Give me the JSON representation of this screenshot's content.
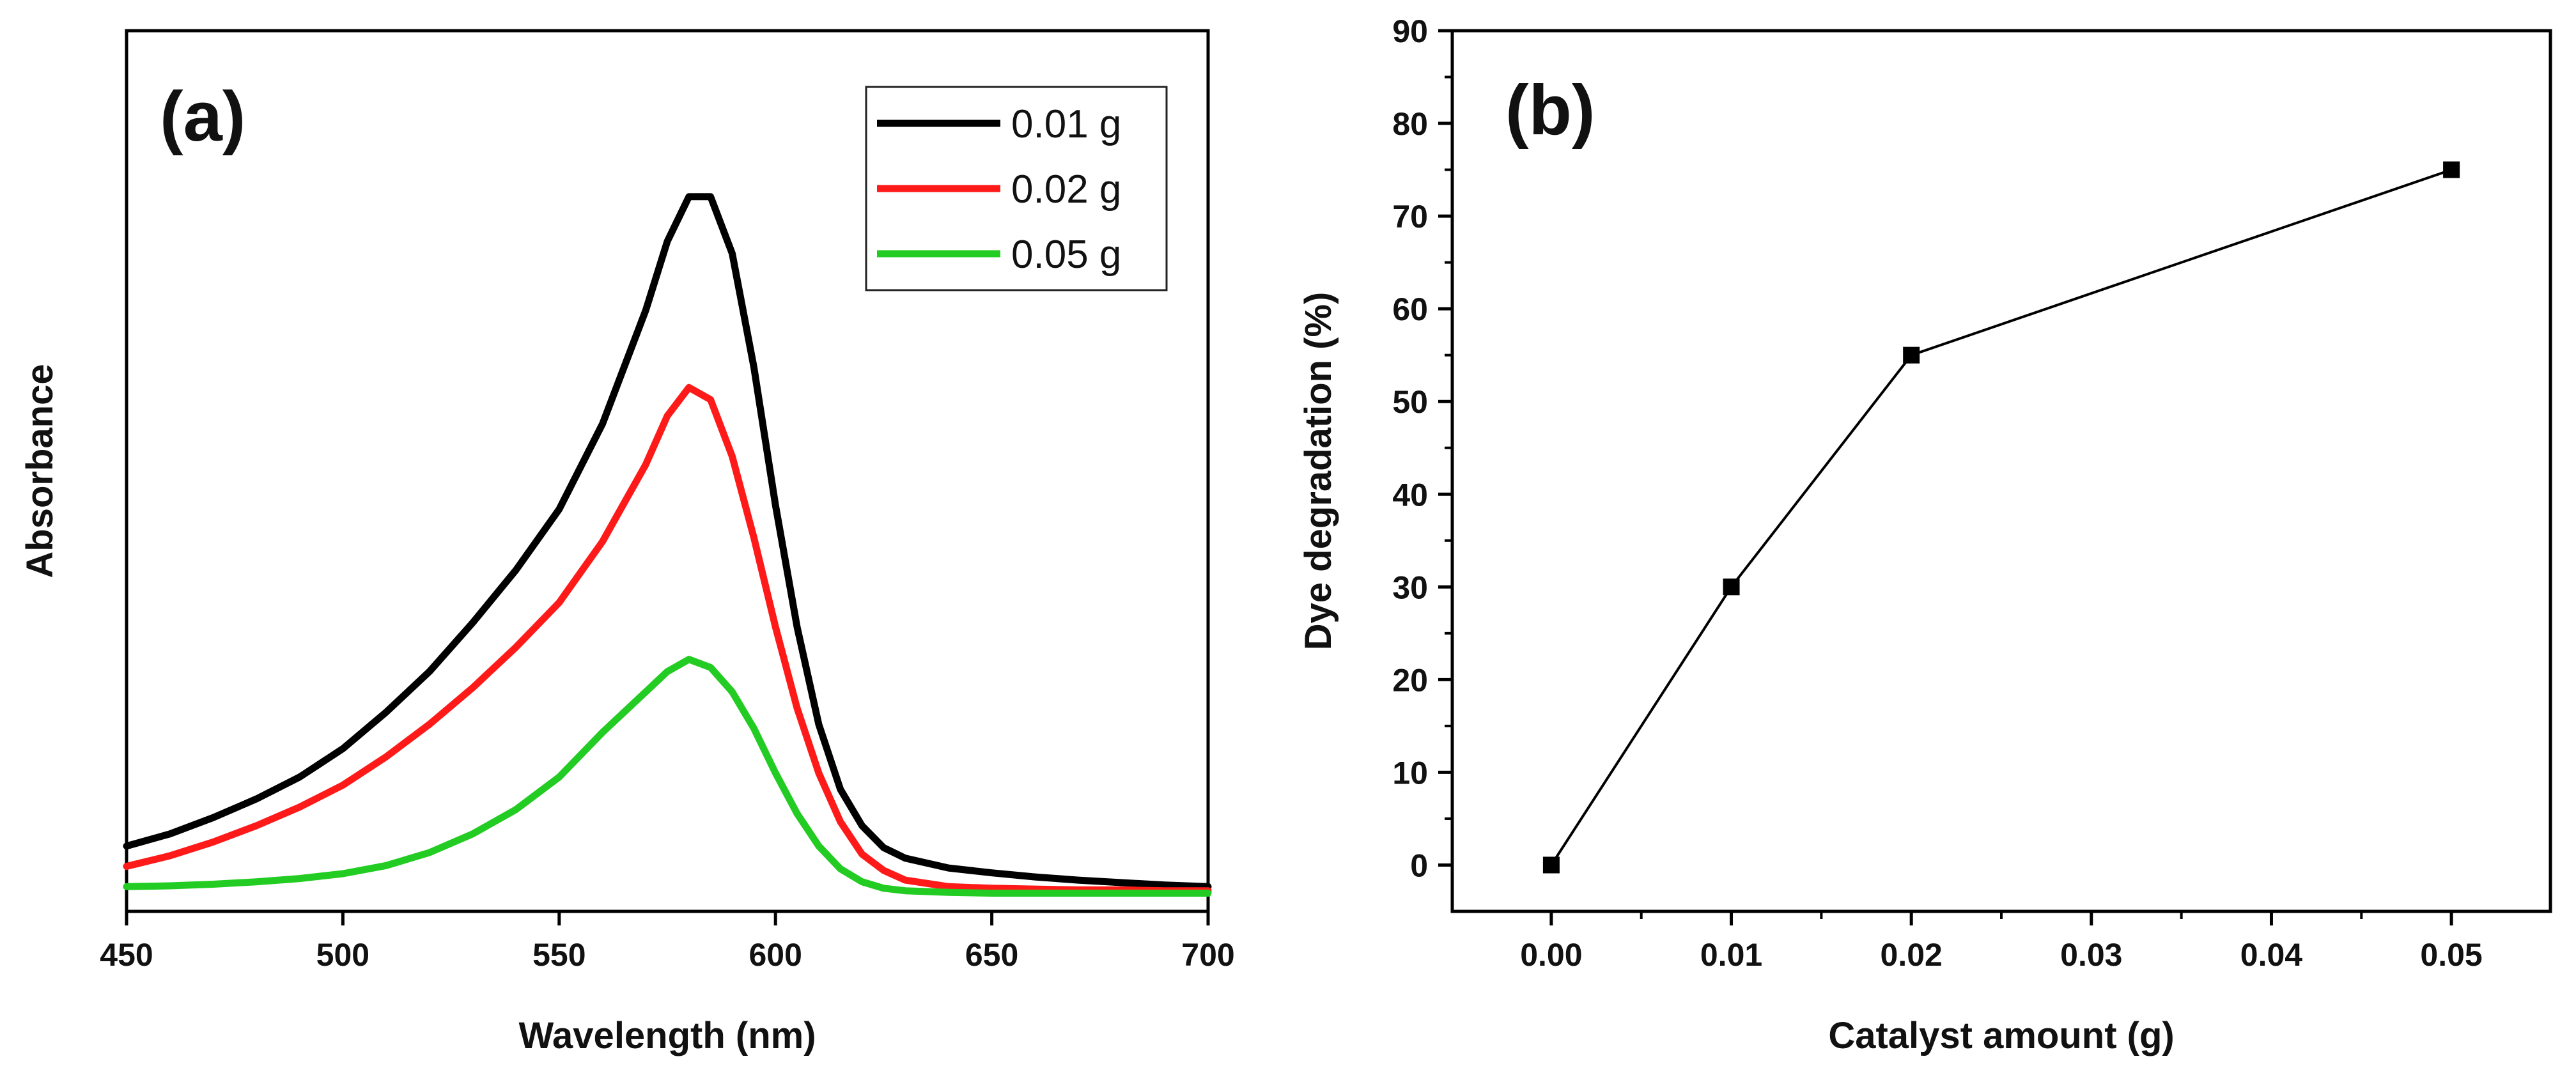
{
  "chart_data": [
    {
      "panel_label": "(a)",
      "type": "line",
      "xlabel": "Wavelength (nm)",
      "ylabel": "Absorbance",
      "xlim": [
        450,
        700
      ],
      "ylim": [
        0,
        1.0
      ],
      "xticks": [
        "450",
        "500",
        "550",
        "600",
        "650",
        "700"
      ],
      "yticks_shown": false,
      "legend_position": "top-right",
      "x": [
        450,
        460,
        470,
        480,
        490,
        500,
        510,
        520,
        530,
        540,
        550,
        560,
        570,
        575,
        580,
        585,
        590,
        595,
        600,
        605,
        610,
        615,
        620,
        625,
        630,
        640,
        650,
        660,
        670,
        680,
        690,
        700
      ],
      "series": [
        {
          "name": "0.01 g",
          "color": "#000000",
          "values": [
            0.06,
            0.075,
            0.095,
            0.118,
            0.145,
            0.18,
            0.225,
            0.275,
            0.335,
            0.4,
            0.475,
            0.58,
            0.72,
            0.805,
            0.86,
            0.86,
            0.79,
            0.65,
            0.48,
            0.33,
            0.21,
            0.13,
            0.085,
            0.058,
            0.045,
            0.033,
            0.027,
            0.022,
            0.018,
            0.015,
            0.012,
            0.01
          ]
        },
        {
          "name": "0.02 g",
          "color": "#ff1a1a",
          "values": [
            0.035,
            0.048,
            0.065,
            0.085,
            0.108,
            0.135,
            0.17,
            0.21,
            0.255,
            0.305,
            0.36,
            0.435,
            0.53,
            0.59,
            0.625,
            0.61,
            0.54,
            0.44,
            0.33,
            0.23,
            0.15,
            0.09,
            0.05,
            0.03,
            0.018,
            0.01,
            0.008,
            0.007,
            0.006,
            0.006,
            0.005,
            0.005
          ]
        },
        {
          "name": "0.05 g",
          "color": "#22cc22",
          "values": [
            0.01,
            0.011,
            0.013,
            0.016,
            0.02,
            0.026,
            0.036,
            0.052,
            0.075,
            0.105,
            0.145,
            0.2,
            0.25,
            0.275,
            0.29,
            0.28,
            0.25,
            0.205,
            0.15,
            0.1,
            0.06,
            0.032,
            0.016,
            0.008,
            0.005,
            0.003,
            0.002,
            0.002,
            0.002,
            0.002,
            0.002,
            0.002
          ]
        }
      ]
    },
    {
      "panel_label": "(b)",
      "type": "line",
      "markers": "square",
      "xlabel": "Catalyst amount (g)",
      "ylabel": "Dye degradation (%)",
      "xlim": [
        -0.0055,
        0.0555
      ],
      "ylim": [
        -5,
        90
      ],
      "xticks": [
        "0.00",
        "0.01",
        "0.02",
        "0.03",
        "0.04",
        "0.05"
      ],
      "yticks": [
        "0",
        "10",
        "20",
        "30",
        "40",
        "50",
        "60",
        "70",
        "80",
        "90"
      ],
      "series": [
        {
          "name": "Dye degradation",
          "color": "#000000",
          "x": [
            0.0,
            0.01,
            0.02,
            0.05
          ],
          "y": [
            0,
            30,
            55,
            75
          ]
        }
      ]
    }
  ]
}
